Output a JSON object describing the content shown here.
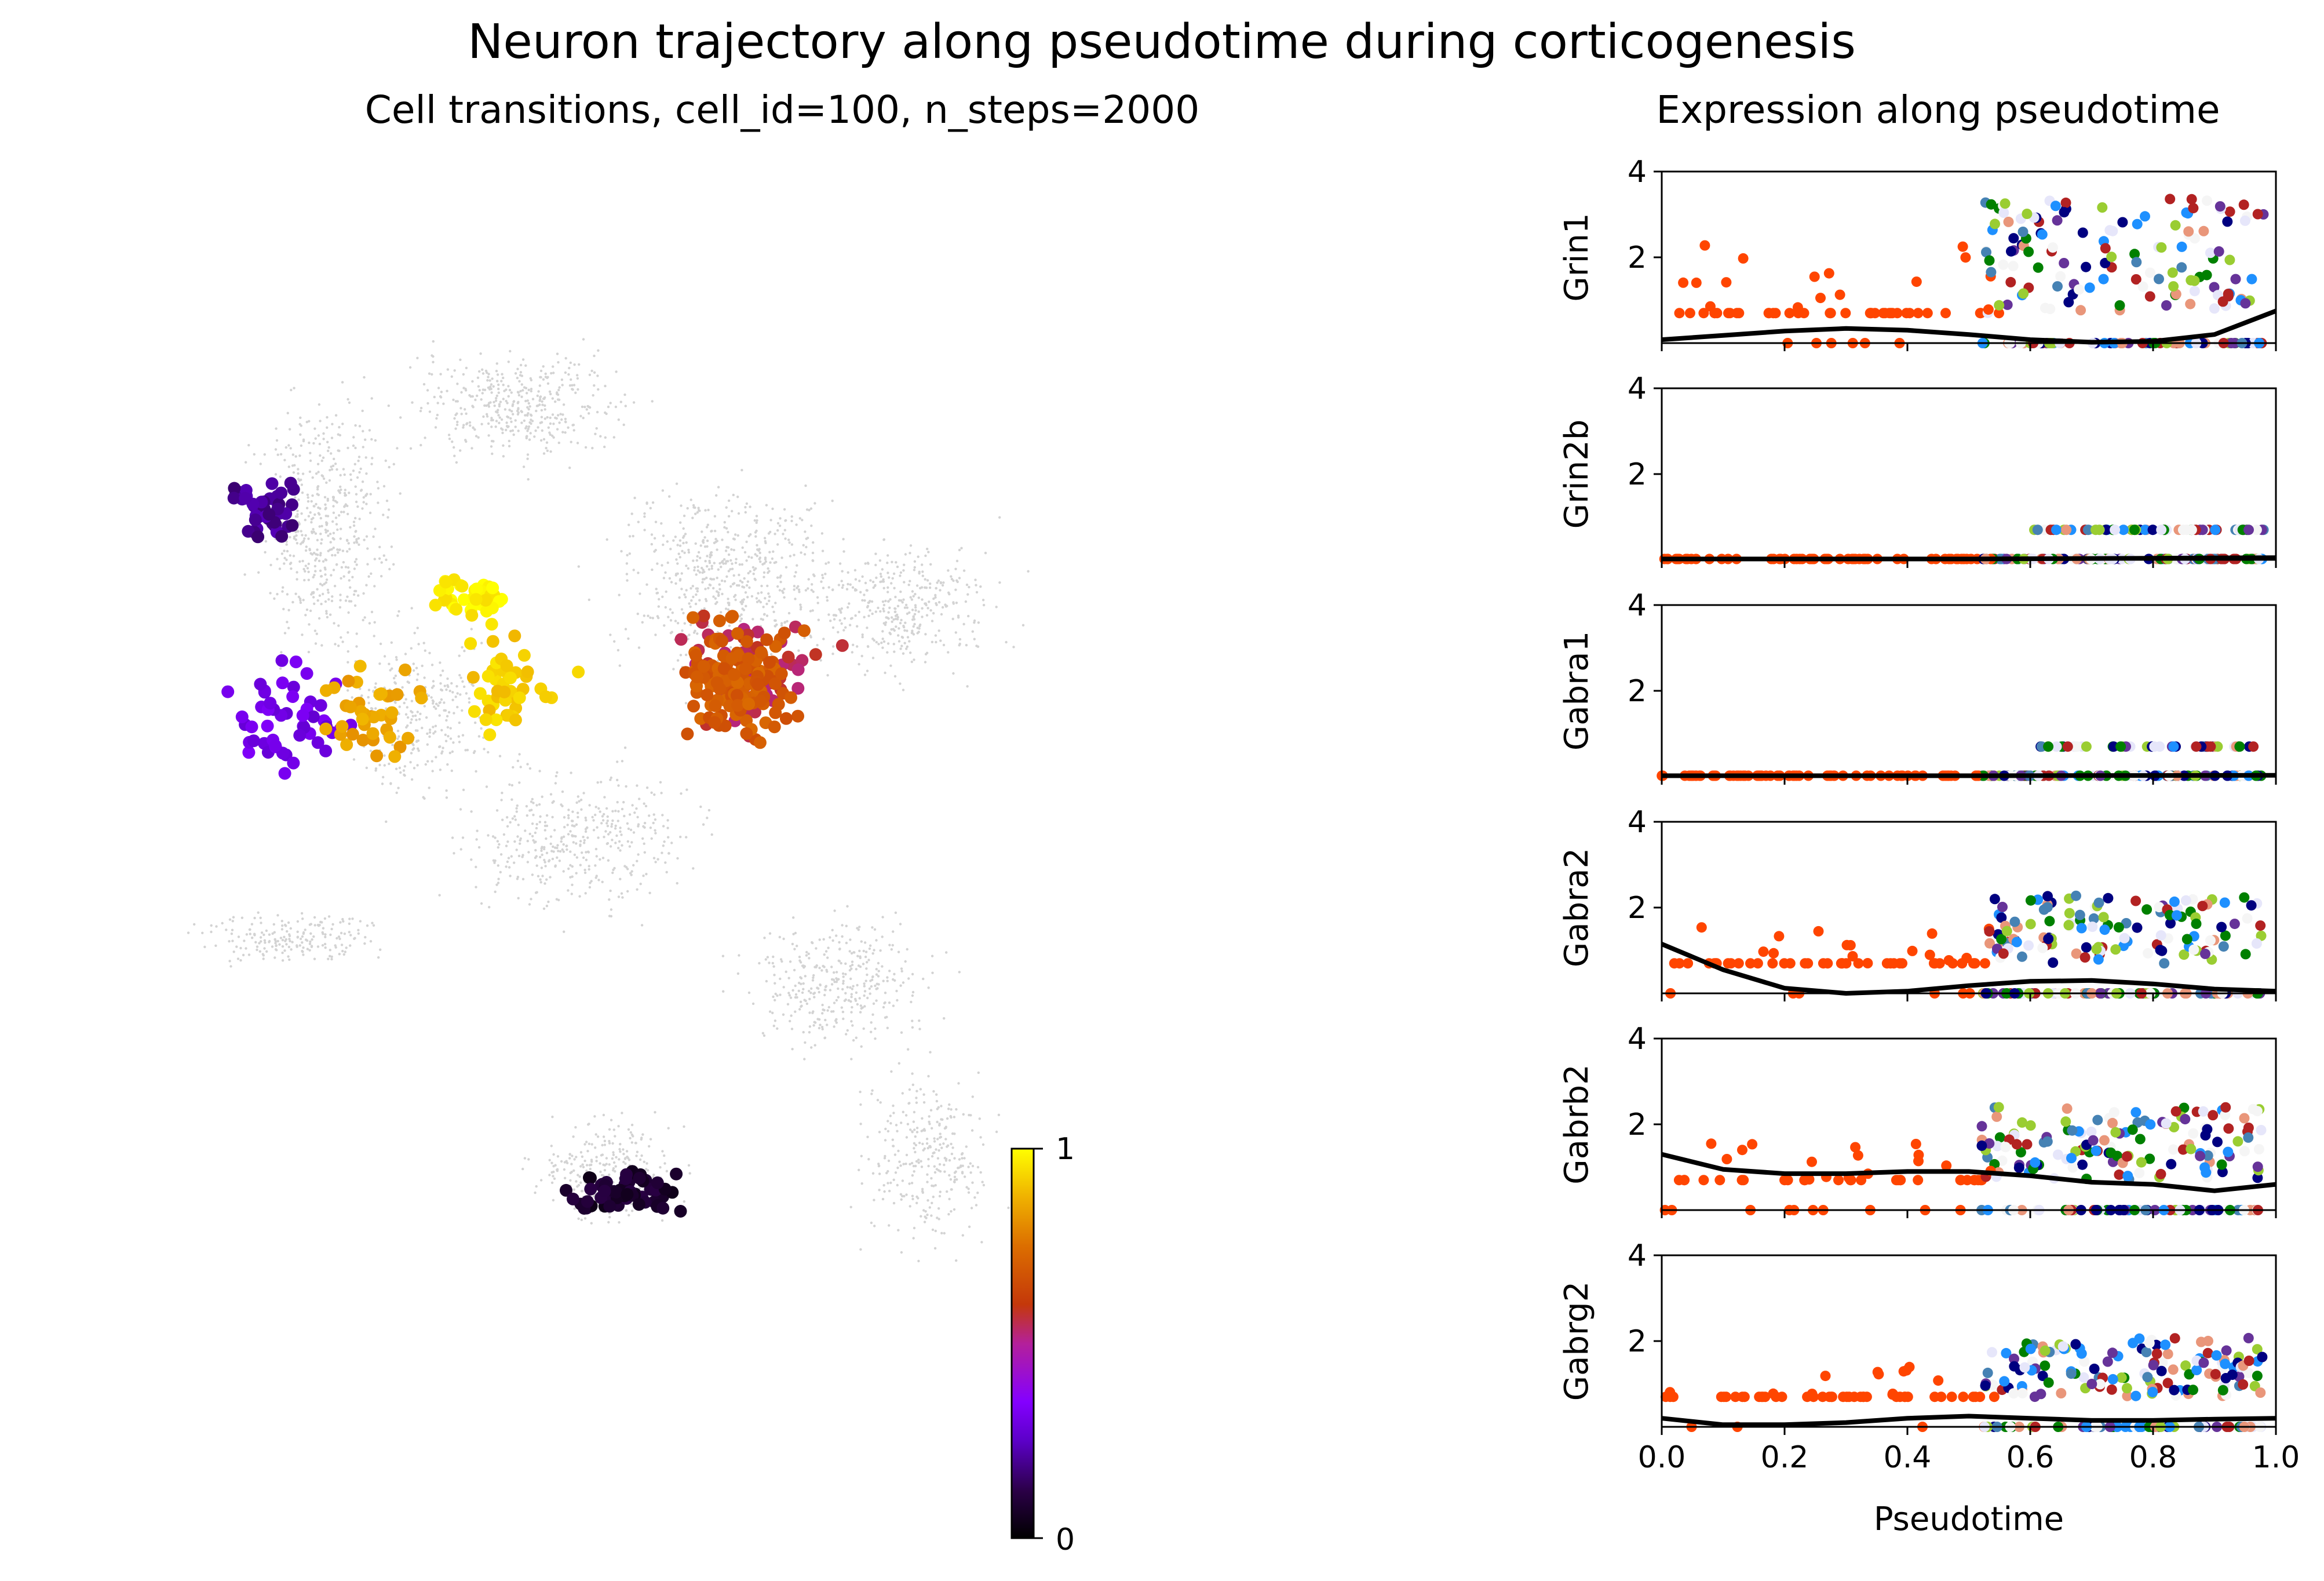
{
  "title": "Neuron trajectory along pseudotime during corticogenesis",
  "chart_data": [
    {
      "type": "scatter",
      "title": "Cell transitions, cell_id=100, n_steps=2000",
      "colorbar": {
        "min": 0,
        "max": 1,
        "tick_labels": [
          "0",
          "1"
        ],
        "colormap": "gnuplot"
      },
      "background_color": "#d3d3d3",
      "clusters": [
        {
          "color_value": 0.08,
          "count": 70
        },
        {
          "color_value": 0.2,
          "count": 45
        },
        {
          "color_value": 0.3,
          "count": 50
        },
        {
          "color_value": 0.55,
          "count": 60
        },
        {
          "color_value": 0.7,
          "count": 140
        },
        {
          "color_value": 0.85,
          "count": 40
        },
        {
          "color_value": 0.92,
          "count": 45
        },
        {
          "color_value": 0.98,
          "count": 40
        }
      ]
    },
    {
      "type": "scatter",
      "title": "Expression along pseudotime",
      "xlabel": "Pseudotime",
      "xlim": [
        0,
        1
      ],
      "ylim": [
        0,
        4
      ],
      "x_ticks": [
        "0.0",
        "0.2",
        "0.4",
        "0.6",
        "0.8",
        "1.0"
      ],
      "y_ticks": [
        "2",
        "4"
      ],
      "point_colors": [
        "#ff4500",
        "#000080",
        "#008000",
        "#e9967a",
        "#b22222",
        "#9acd32",
        "#663399",
        "#4682b4",
        "#e6e6fa",
        "#1e90ff",
        "#f5f5f5"
      ],
      "genes": [
        {
          "name": "Grin1",
          "trend_x": [
            0,
            0.1,
            0.2,
            0.3,
            0.4,
            0.5,
            0.6,
            0.7,
            0.8,
            0.9,
            1.0
          ],
          "trend_y": [
            0.08,
            0.18,
            0.28,
            0.34,
            0.3,
            0.2,
            0.08,
            0.02,
            0.04,
            0.2,
            0.75
          ],
          "max_expr": 3.4
        },
        {
          "name": "Grin2b",
          "trend_x": [
            0,
            0.5,
            1.0
          ],
          "trend_y": [
            0.02,
            0.02,
            0.05
          ],
          "max_expr": 0.7
        },
        {
          "name": "Gabra1",
          "trend_x": [
            0,
            0.5,
            1.0
          ],
          "trend_y": [
            0.02,
            0.02,
            0.03
          ],
          "max_expr": 0.7
        },
        {
          "name": "Gabra2",
          "trend_x": [
            0,
            0.1,
            0.2,
            0.3,
            0.4,
            0.5,
            0.6,
            0.7,
            0.8,
            0.9,
            1.0
          ],
          "trend_y": [
            1.15,
            0.55,
            0.12,
            0.0,
            0.05,
            0.18,
            0.28,
            0.3,
            0.22,
            0.1,
            0.05
          ],
          "max_expr": 2.3
        },
        {
          "name": "Gabrb2",
          "trend_x": [
            0,
            0.1,
            0.2,
            0.3,
            0.4,
            0.5,
            0.6,
            0.7,
            0.8,
            0.9,
            1.0
          ],
          "trend_y": [
            1.3,
            0.95,
            0.85,
            0.85,
            0.9,
            0.9,
            0.8,
            0.65,
            0.6,
            0.45,
            0.6
          ],
          "max_expr": 2.4
        },
        {
          "name": "Gabrg2",
          "trend_x": [
            0,
            0.1,
            0.2,
            0.3,
            0.4,
            0.5,
            0.6,
            0.7,
            0.8,
            0.9,
            1.0
          ],
          "trend_y": [
            0.2,
            0.05,
            0.05,
            0.1,
            0.2,
            0.25,
            0.2,
            0.15,
            0.15,
            0.18,
            0.2
          ],
          "max_expr": 2.1
        }
      ]
    }
  ]
}
